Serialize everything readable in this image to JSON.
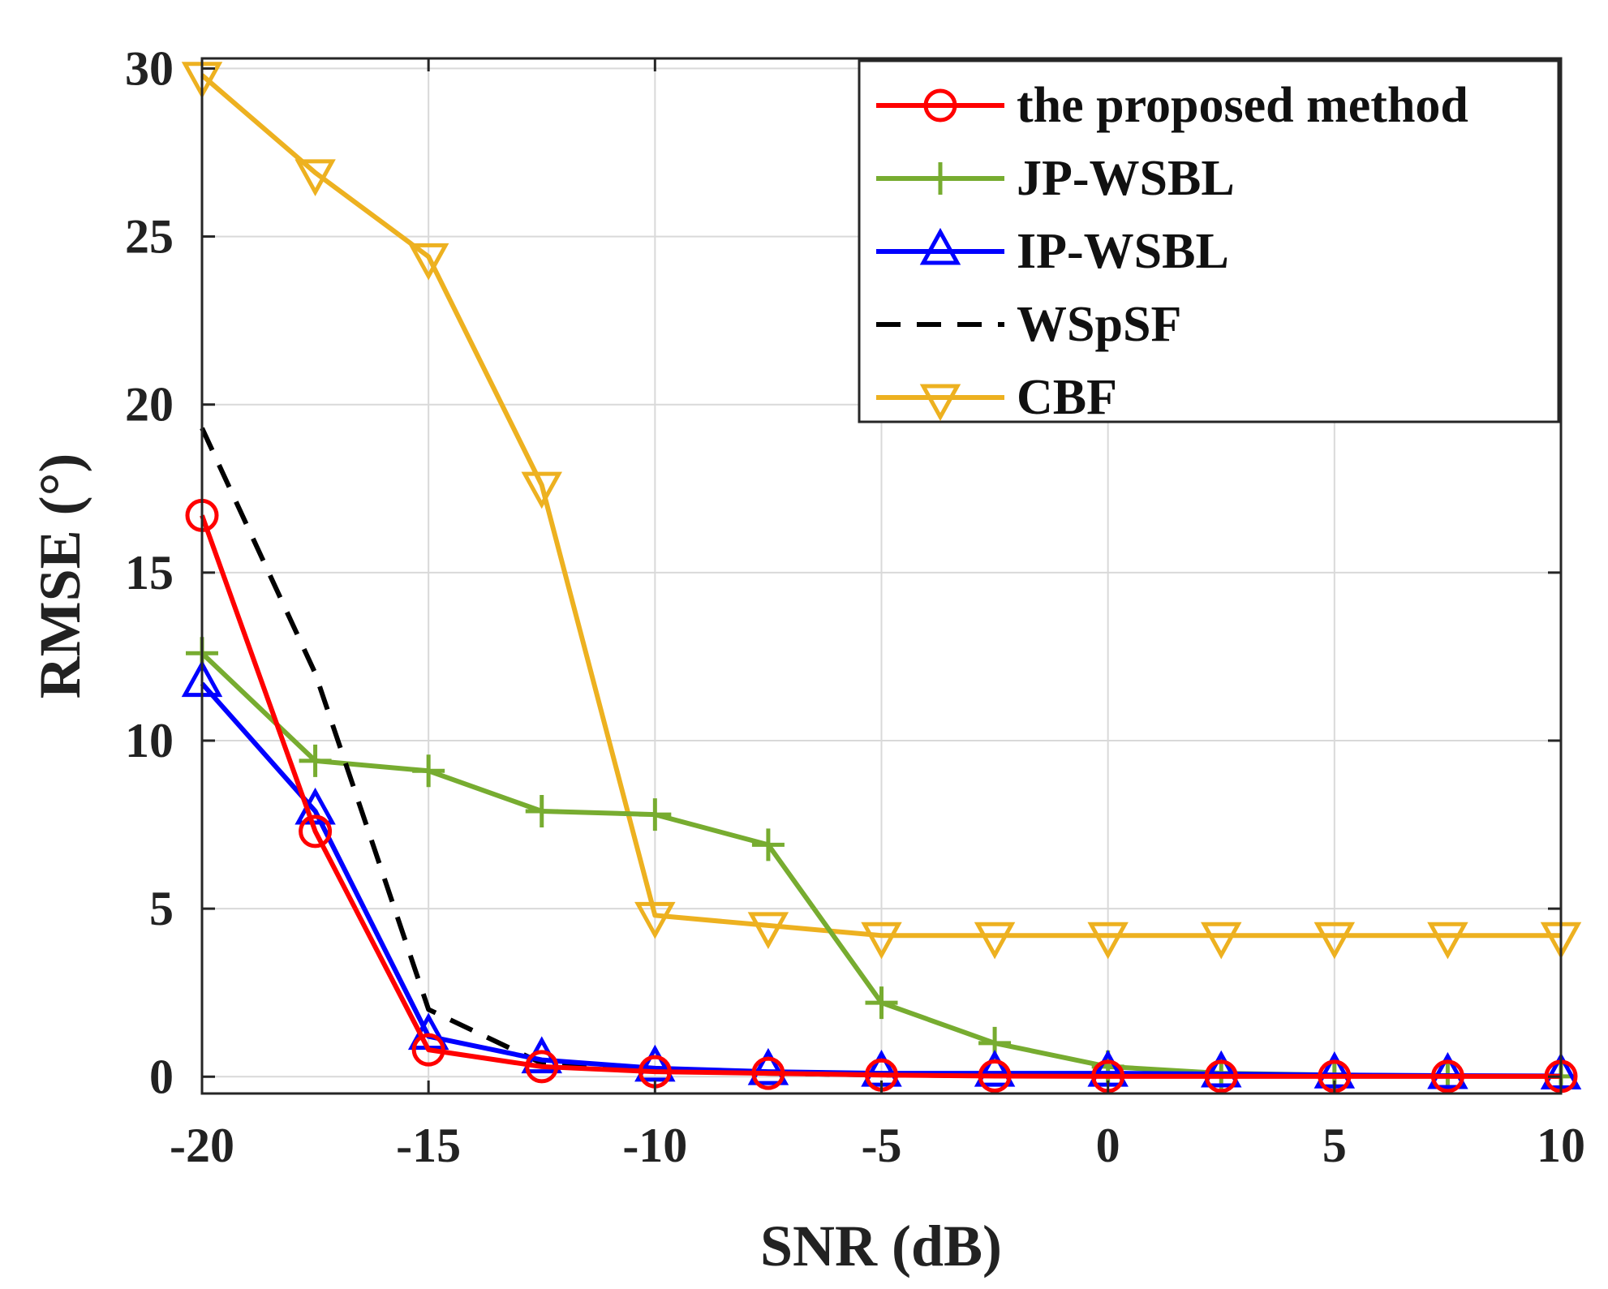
{
  "chart_data": {
    "type": "line",
    "title": "",
    "xlabel": "SNR (dB)",
    "ylabel": "RMSE (°)",
    "xlim": [
      -20,
      10
    ],
    "ylim": [
      -0.5,
      30.3
    ],
    "xticks": [
      -20,
      -15,
      -10,
      -5,
      0,
      5,
      10
    ],
    "xtick_labels": [
      "-20",
      "-15",
      "-10",
      "-5",
      "0",
      "5",
      "10"
    ],
    "yticks": [
      0,
      5,
      10,
      15,
      20,
      25,
      30
    ],
    "ytick_labels": [
      "0",
      "5",
      "10",
      "15",
      "20",
      "25",
      "30"
    ],
    "grid": true,
    "legend_position": "top-right",
    "x": [
      -20,
      -17.5,
      -15,
      -12.5,
      -10,
      -7.5,
      -5,
      -2.5,
      0,
      2.5,
      5,
      7.5,
      10
    ],
    "series": [
      {
        "name": "the proposed method",
        "color": "#ff0000",
        "marker": "circle",
        "dash": "solid",
        "values": [
          16.7,
          7.3,
          0.8,
          0.3,
          0.15,
          0.1,
          0.05,
          0.02,
          0.01,
          0.01,
          0.01,
          0.01,
          0.01
        ]
      },
      {
        "name": "JP-WSBL",
        "color": "#77ac30",
        "marker": "plus",
        "dash": "solid",
        "values": [
          12.6,
          9.4,
          9.1,
          7.9,
          7.8,
          6.9,
          2.2,
          1.0,
          0.3,
          0.1,
          0.05,
          0.02,
          0.01
        ]
      },
      {
        "name": "IP-WSBL",
        "color": "#0000ff",
        "marker": "triangle-up",
        "dash": "solid",
        "values": [
          11.7,
          7.9,
          1.2,
          0.5,
          0.25,
          0.15,
          0.1,
          0.1,
          0.1,
          0.08,
          0.05,
          0.03,
          0.02
        ]
      },
      {
        "name": "WSpSF",
        "color": "#000000",
        "marker": "none",
        "dash": "dashed",
        "values": [
          19.3,
          12.0,
          2.0,
          0.4,
          0.2,
          0.1,
          0.05,
          0.03,
          0.02,
          0.02,
          0.02,
          0.02,
          0.02
        ]
      },
      {
        "name": "CBF",
        "color": "#edb120",
        "marker": "triangle-down",
        "dash": "solid",
        "values": [
          29.8,
          26.9,
          24.4,
          17.6,
          4.8,
          4.5,
          4.2,
          4.2,
          4.2,
          4.2,
          4.2,
          4.2,
          4.2
        ]
      }
    ]
  }
}
